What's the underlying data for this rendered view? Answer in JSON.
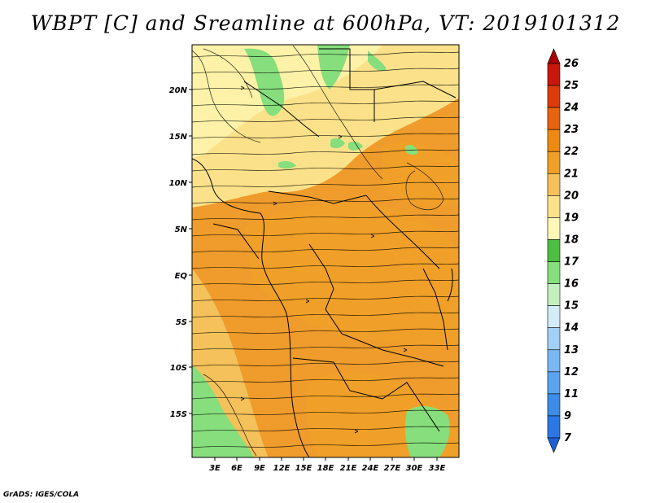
{
  "title": "WBPT [C] and Sreamline at 600hPa, VT: 2019101312",
  "credit": "GrADS: IGES/COLA",
  "map": {
    "field": "wet-bulb potential temperature",
    "units": "C",
    "level": "600hPa",
    "lat_range": [
      -19,
      25
    ],
    "lon_range": [
      0,
      36
    ],
    "lat_ticks": [
      {
        "value": 20,
        "label": "20N"
      },
      {
        "value": 15,
        "label": "15N"
      },
      {
        "value": 10,
        "label": "10N"
      },
      {
        "value": 5,
        "label": "5N"
      },
      {
        "value": 0,
        "label": "EQ"
      },
      {
        "value": -5,
        "label": "5S"
      },
      {
        "value": -10,
        "label": "10S"
      },
      {
        "value": -15,
        "label": "15S"
      }
    ],
    "lon_ticks": [
      {
        "value": 3,
        "label": "3E"
      },
      {
        "value": 6,
        "label": "6E"
      },
      {
        "value": 9,
        "label": "9E"
      },
      {
        "value": 12,
        "label": "12E"
      },
      {
        "value": 15,
        "label": "15E"
      },
      {
        "value": 18,
        "label": "18E"
      },
      {
        "value": 21,
        "label": "21E"
      },
      {
        "value": 24,
        "label": "24E"
      },
      {
        "value": 27,
        "label": "27E"
      },
      {
        "value": 30,
        "label": "30E"
      },
      {
        "value": 33,
        "label": "33E"
      }
    ]
  },
  "colorbar": {
    "labels": [
      "7",
      "9",
      "11",
      "12",
      "13",
      "14",
      "15",
      "16",
      "17",
      "18",
      "19",
      "20",
      "21",
      "22",
      "23",
      "24",
      "25",
      "26"
    ],
    "colors": [
      "#1e5fd6",
      "#2b78e4",
      "#3c8ce8",
      "#5aa3ef",
      "#7ab8f2",
      "#a2d0f6",
      "#d4ecf8",
      "#c4f0c0",
      "#86de7c",
      "#4cbf44",
      "#fdf7b8",
      "#fbe28a",
      "#f5c15a",
      "#f0a028",
      "#ee8a14",
      "#e86410",
      "#dc3c0c",
      "#c8180c",
      "#a80000"
    ]
  }
}
